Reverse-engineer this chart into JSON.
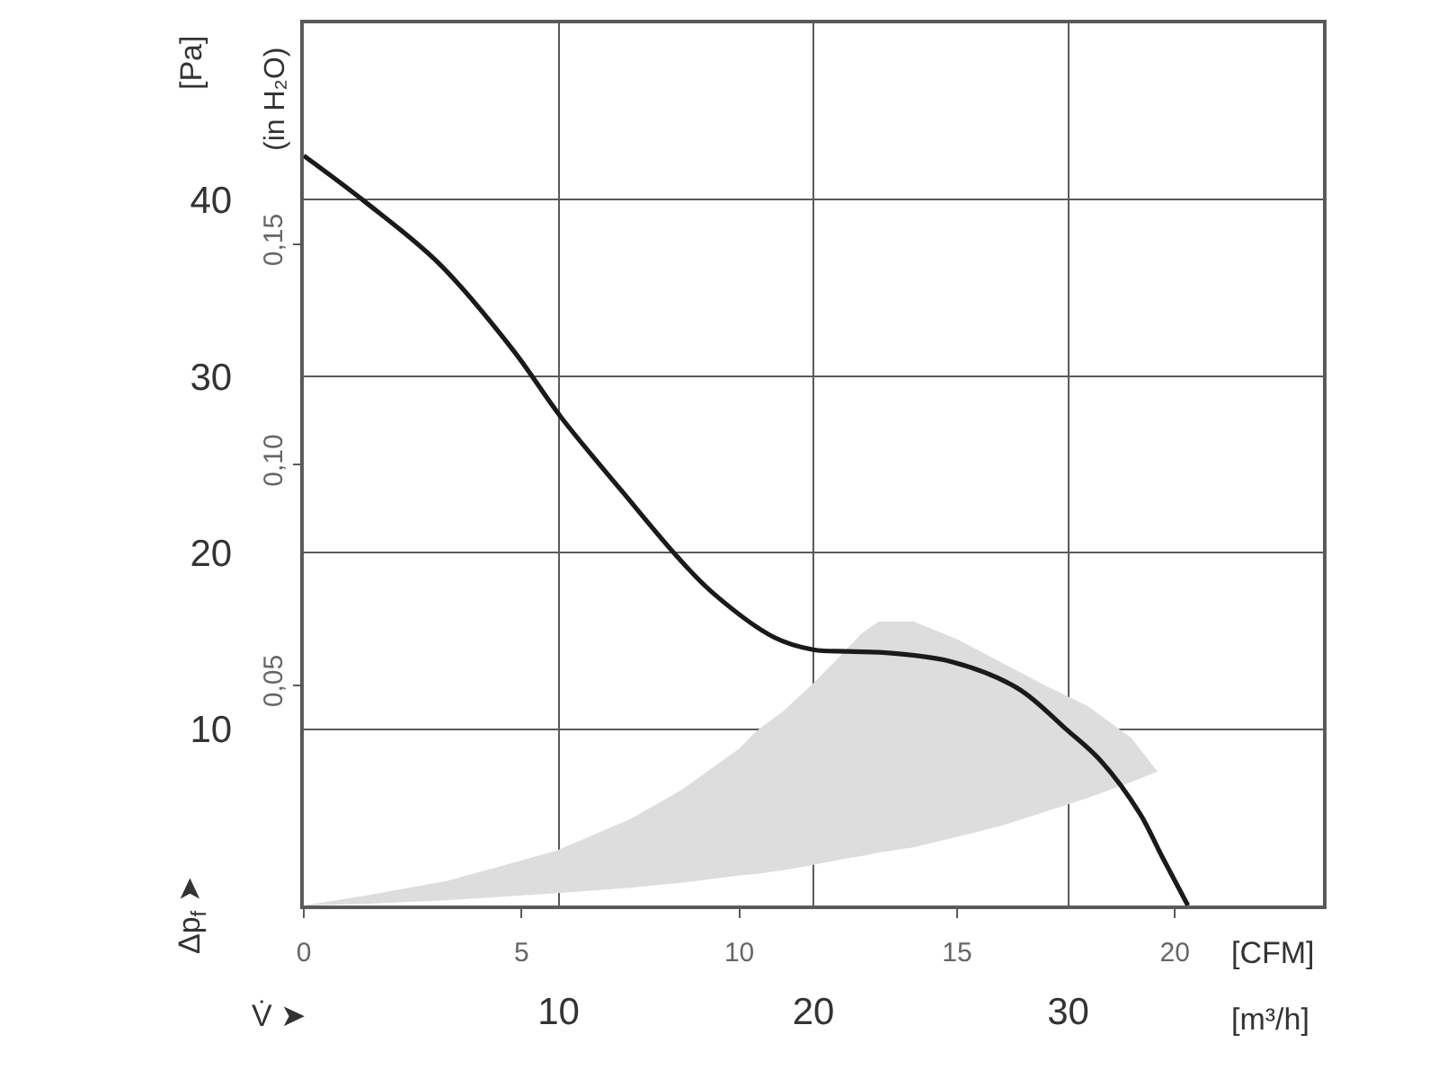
{
  "chart_data": {
    "type": "line",
    "xlabel": "[CFM]",
    "x2label": "[m³/h]",
    "ylabel": "[Pa]",
    "y2label": "(in H₂O)",
    "annotations": [
      "Δp$_{f}$ ➤",
      "V̇ ➤"
    ],
    "xlim": [
      0,
      23.4
    ],
    "xticks": [
      0,
      5,
      10,
      15,
      20
    ],
    "x2lim": [
      0,
      40
    ],
    "x2ticks": [
      10,
      20,
      30
    ],
    "ylim": [
      0,
      50
    ],
    "yticks": [
      10,
      20,
      30,
      40
    ],
    "y2lim": [
      0,
      0.2
    ],
    "y2ticks": [
      {
        "value": 0.05,
        "label": "0,05"
      },
      {
        "value": 0.1,
        "label": "0,10"
      },
      {
        "value": 0.15,
        "label": "0,15"
      }
    ],
    "grid": true,
    "series": [
      {
        "color": "#dddddd",
        "x": [
          0,
          1.5,
          3.3,
          5.8,
          7.5,
          8.7,
          10.0,
          10.4,
          11.0,
          11.7,
          12.3,
          12.8,
          13.2,
          14.0,
          15.0,
          16.0,
          17.0,
          18.0,
          19.0,
          19.6
        ],
        "values": [
          null,
          null,
          null,
          null,
          null,
          null,
          null,
          null,
          null,
          null,
          null,
          null,
          null,
          null,
          null,
          null,
          null,
          null,
          null,
          null
        ],
        "upper": [
          0,
          0.6,
          1.4,
          3.1,
          4.9,
          6.6,
          8.9,
          9.9,
          11.0,
          12.6,
          14.1,
          15.4,
          16.1,
          16.1,
          15.1,
          13.8,
          12.5,
          11.3,
          9.5,
          7.6
        ],
        "lower": [
          0,
          0.1,
          0.3,
          0.7,
          1.0,
          1.3,
          1.7,
          1.8,
          2.0,
          2.3,
          2.6,
          2.8,
          3.0,
          3.3,
          3.9,
          4.5,
          5.3,
          6.1,
          7.0,
          7.6
        ]
      },
      {
        "color": "#1a1a1a",
        "x": [
          0,
          1.4,
          3.1,
          4.8,
          5.9,
          7.3,
          8.6,
          9.4,
          10.8,
          11.7,
          12.5,
          13.5,
          14.9,
          16.4,
          17.5,
          18.3,
          19.2,
          19.7,
          20.3
        ],
        "values": [
          42.5,
          39.9,
          36.4,
          31.5,
          27.7,
          23.5,
          19.7,
          17.7,
          15.2,
          14.5,
          14.4,
          14.3,
          13.8,
          12.3,
          10.0,
          8.2,
          5.2,
          2.8,
          0
        ]
      }
    ]
  }
}
